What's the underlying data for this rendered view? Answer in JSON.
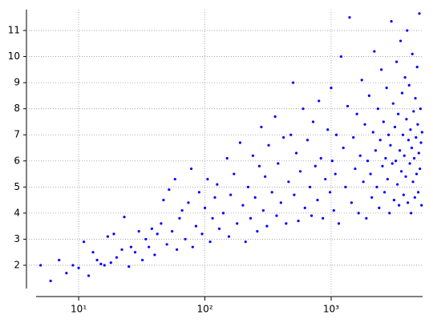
{
  "chart_data": {
    "type": "scatter",
    "color": "#0000ff",
    "xscale": "log",
    "grid": true,
    "xlim": [
      4.6,
      5300
    ],
    "ylim": [
      1.2,
      11.8
    ],
    "xticks": [
      {
        "value": 10,
        "label": "10¹"
      },
      {
        "value": 100,
        "label": "10²"
      },
      {
        "value": 1000,
        "label": "10³"
      }
    ],
    "yticks": [
      2,
      3,
      4,
      5,
      6,
      7,
      8,
      9,
      10,
      11
    ],
    "x": [
      5,
      6,
      7,
      8,
      9,
      10,
      11,
      12,
      13,
      14,
      15,
      16,
      17,
      18,
      19,
      20,
      22,
      23,
      25,
      26,
      28,
      30,
      32,
      34,
      36,
      38,
      40,
      42,
      45,
      47,
      50,
      52,
      55,
      58,
      60,
      63,
      66,
      70,
      74,
      78,
      80,
      85,
      90,
      95,
      100,
      105,
      110,
      115,
      120,
      125,
      130,
      140,
      150,
      155,
      160,
      170,
      180,
      190,
      200,
      210,
      220,
      230,
      240,
      250,
      260,
      270,
      280,
      290,
      300,
      310,
      320,
      340,
      360,
      370,
      380,
      400,
      420,
      440,
      460,
      480,
      500,
      510,
      530,
      550,
      570,
      600,
      620,
      650,
      680,
      700,
      720,
      750,
      780,
      800,
      830,
      860,
      900,
      940,
      980,
      1000,
      1020,
      1050,
      1080,
      1100,
      1150,
      1200,
      1250,
      1300,
      1350,
      1400,
      1450,
      1500,
      1550,
      1600,
      1650,
      1700,
      1750,
      1800,
      1850,
      1900,
      1950,
      2000,
      2050,
      2100,
      2150,
      2200,
      2250,
      2300,
      2350,
      2400,
      2450,
      2500,
      2550,
      2600,
      2650,
      2700,
      2750,
      2800,
      2850,
      2900,
      2950,
      3000,
      3050,
      3100,
      3150,
      3200,
      3250,
      3300,
      3350,
      3400,
      3450,
      3500,
      3550,
      3600,
      3650,
      3700,
      3750,
      3800,
      3850,
      3900,
      3950,
      4000,
      4050,
      4100,
      4150,
      4200,
      4250,
      4300,
      4350,
      4400,
      4450,
      4500,
      4550,
      4600,
      4650,
      4700,
      4750,
      4800,
      4850,
      4900,
      4950,
      5000,
      5050,
      5100,
      5150,
      5200,
      5250
    ],
    "values": [
      2.0,
      1.4,
      2.2,
      1.7,
      2.0,
      1.9,
      2.9,
      1.6,
      2.5,
      2.2,
      2.05,
      2.0,
      3.1,
      2.1,
      3.2,
      2.3,
      2.6,
      3.85,
      1.95,
      2.7,
      2.5,
      3.3,
      2.2,
      3.0,
      2.7,
      3.4,
      2.4,
      3.2,
      3.6,
      4.5,
      2.8,
      4.9,
      3.3,
      5.3,
      2.6,
      3.8,
      4.1,
      3.0,
      4.4,
      5.7,
      2.7,
      3.5,
      4.8,
      3.2,
      4.2,
      5.3,
      2.9,
      3.8,
      4.6,
      5.1,
      3.4,
      4.0,
      6.1,
      3.1,
      4.7,
      5.5,
      3.6,
      6.7,
      4.3,
      2.9,
      5.0,
      3.8,
      6.2,
      4.6,
      3.3,
      5.8,
      7.3,
      4.1,
      5.4,
      3.5,
      6.6,
      4.8,
      7.7,
      3.9,
      5.9,
      4.4,
      6.9,
      3.6,
      5.2,
      7.0,
      9.0,
      4.7,
      6.3,
      3.7,
      5.6,
      8.0,
      4.2,
      6.8,
      5.0,
      3.9,
      7.5,
      5.8,
      4.5,
      8.3,
      6.1,
      3.8,
      5.3,
      7.2,
      4.8,
      8.8,
      6.0,
      4.1,
      5.5,
      7.0,
      3.6,
      10.0,
      6.5,
      5.0,
      8.1,
      11.5,
      4.4,
      6.9,
      5.7,
      7.8,
      4.0,
      6.2,
      9.1,
      5.2,
      7.4,
      3.8,
      6.0,
      8.5,
      5.5,
      4.6,
      7.1,
      10.2,
      6.4,
      5.0,
      8.0,
      4.2,
      6.8,
      9.5,
      5.8,
      7.5,
      4.8,
      6.1,
      8.8,
      5.3,
      7.0,
      4.0,
      6.6,
      11.35,
      5.9,
      8.2,
      4.5,
      7.3,
      6.0,
      9.8,
      5.1,
      7.8,
      4.3,
      6.4,
      10.6,
      5.6,
      8.6,
      7.0,
      4.7,
      6.2,
      9.2,
      5.4,
      7.6,
      11.0,
      4.4,
      6.8,
      8.9,
      5.9,
      7.2,
      4.0,
      6.5,
      10.1,
      5.2,
      7.9,
      6.1,
      4.6,
      8.4,
      6.9,
      5.5,
      9.6,
      7.4,
      4.8,
      6.3,
      11.65,
      5.7,
      8.0,
      6.7,
      4.3,
      7.1
    ]
  }
}
